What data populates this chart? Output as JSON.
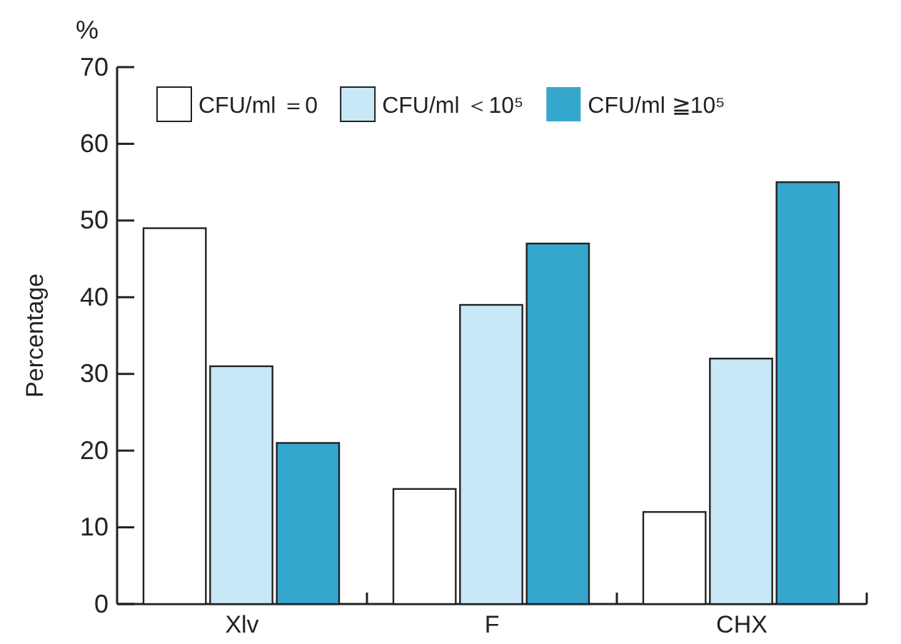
{
  "chart_data": {
    "type": "bar",
    "ylabel": "Percentage",
    "annotations": [
      "%"
    ],
    "categories": [
      "Xlv",
      "F",
      "CHX"
    ],
    "series": [
      {
        "name": "CFU/ml ＝0",
        "color": "#ffffff",
        "values": [
          49,
          15,
          12
        ]
      },
      {
        "name": "CFU/ml ＜10⁵",
        "color": "#c8e8f7",
        "values": [
          31,
          39,
          32
        ]
      },
      {
        "name": "CFU/ml ≧10⁵",
        "color": "#35a6cc",
        "values": [
          21,
          47,
          55
        ]
      }
    ],
    "ylim": [
      0,
      70
    ],
    "yticks": [
      0,
      10,
      20,
      30,
      40,
      50,
      60,
      70
    ],
    "legend": "top",
    "grid": false
  }
}
